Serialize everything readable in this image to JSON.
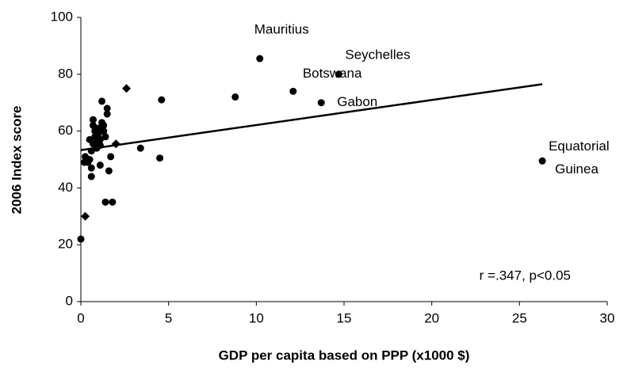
{
  "chart_data": {
    "type": "scatter",
    "xlabel": "GDP per capita based on PPP (x1000 $)",
    "ylabel": "2006 Index score",
    "xlim": [
      0,
      30
    ],
    "ylim": [
      0,
      100
    ],
    "xticks": [
      0,
      5,
      10,
      15,
      20,
      25,
      30
    ],
    "yticks": [
      0,
      20,
      40,
      60,
      80,
      100
    ],
    "grid": false,
    "series": [
      {
        "marker": "circle",
        "color": "#000000",
        "x": [
          0,
          0.2,
          0.3,
          0.25,
          0.4,
          0.5,
          0.6,
          0.6,
          0.6,
          0.7,
          0.7,
          0.8,
          0.8,
          0.9,
          0.9,
          1.0,
          1.0,
          1.1,
          1.1,
          1.1,
          1.2,
          1.2,
          1.3,
          1.3,
          1.4,
          1.4,
          1.5,
          1.5,
          1.6,
          1.7,
          1.8,
          0.5,
          0.7,
          3.4,
          4.5,
          4.6,
          8.8,
          10.2,
          14.7,
          12.1,
          13.7,
          26.3
        ],
        "values": [
          22,
          49,
          50,
          51,
          49,
          50,
          53,
          47,
          44,
          64,
          62,
          60,
          58,
          56,
          54,
          61,
          59,
          57,
          55,
          48,
          70.5,
          63,
          62,
          60,
          58,
          35,
          68,
          66,
          46,
          51,
          35,
          57,
          55.5,
          54,
          50.5,
          71,
          72,
          85.5,
          80,
          74,
          70,
          49.5
        ],
        "labels": [
          null,
          null,
          null,
          null,
          null,
          null,
          null,
          null,
          null,
          null,
          null,
          null,
          null,
          null,
          null,
          null,
          null,
          null,
          null,
          null,
          null,
          null,
          null,
          null,
          null,
          null,
          null,
          null,
          null,
          null,
          null,
          null,
          null,
          null,
          null,
          null,
          null,
          [
            "Mauritius"
          ],
          [
            "Seychelles"
          ],
          [
            "Botswana"
          ],
          [
            "Gabon"
          ],
          [
            "Equatorial",
            "Guinea"
          ]
        ]
      },
      {
        "marker": "diamond",
        "color": "#000000",
        "x": [
          0.25,
          2.6,
          2.0,
          1.0
        ],
        "values": [
          30,
          75,
          55.5,
          56
        ]
      }
    ],
    "trendline": {
      "color": "#000000",
      "x": [
        0,
        26.3
      ],
      "values": [
        53.3,
        76.5
      ]
    },
    "annotation": "r =.347, p<0.05"
  }
}
